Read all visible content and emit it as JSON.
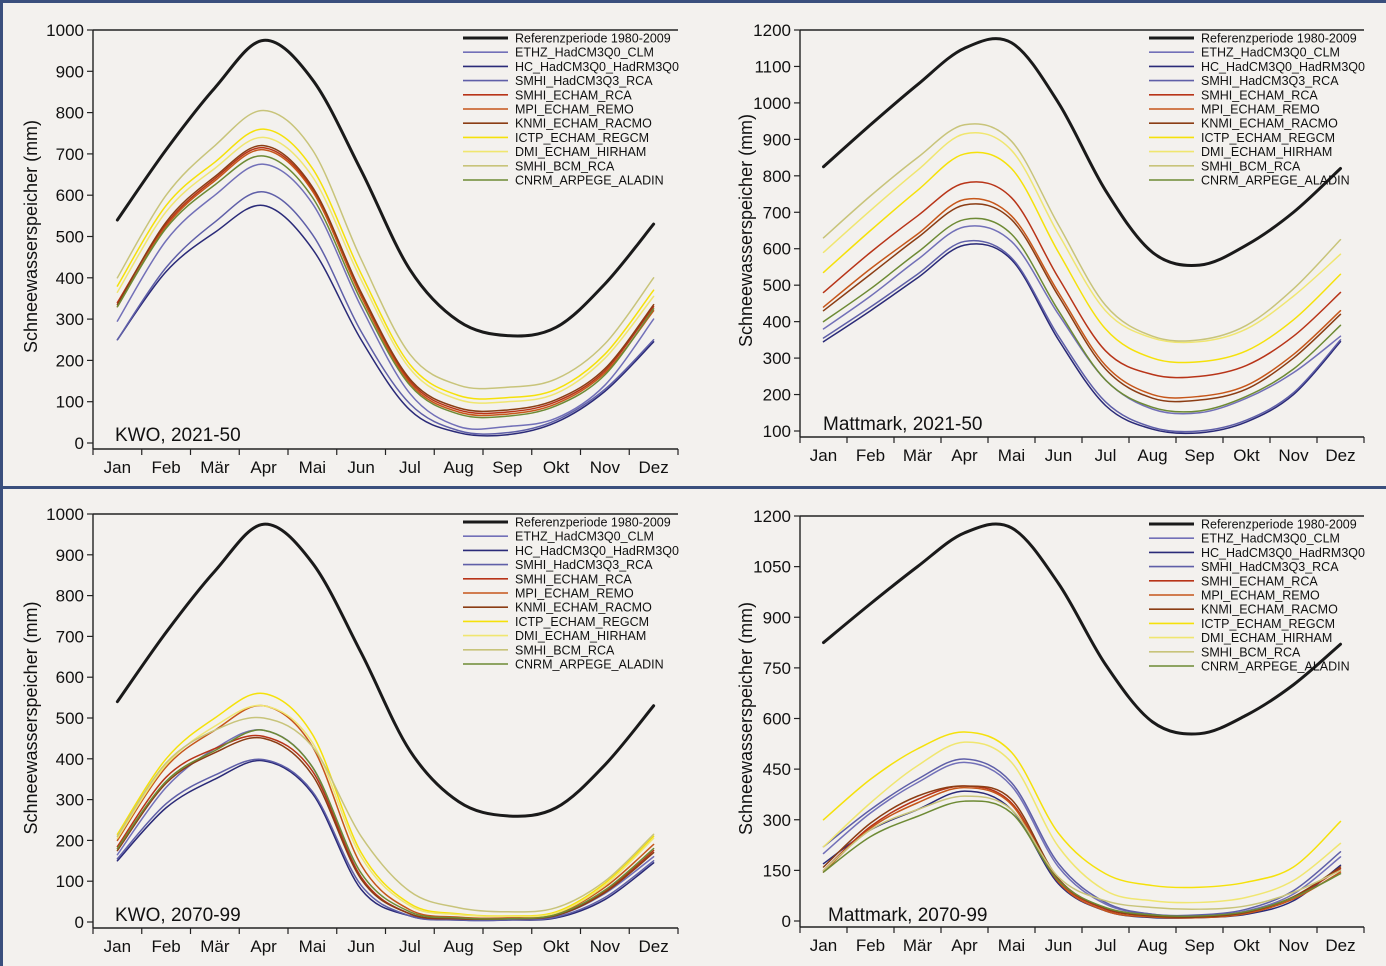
{
  "chart_data": [
    {
      "type": "line",
      "panel_label": "KWO, 2021-50",
      "ylabel": "Schneewasserspeicher (mm)",
      "ylim": [
        0,
        1000
      ],
      "yticks": [
        0,
        100,
        200,
        300,
        400,
        500,
        600,
        700,
        800,
        900,
        1000
      ],
      "categories": [
        "Jan",
        "Feb",
        "Mär",
        "Apr",
        "Mai",
        "Jun",
        "Jul",
        "Aug",
        "Sep",
        "Okt",
        "Nov",
        "Dez"
      ],
      "legend_position": "top-right",
      "series": [
        {
          "name": "Referenzperiode 1980-2009",
          "color": "#1a1a1a",
          "bold": true,
          "values": [
            540,
            710,
            860,
            975,
            880,
            660,
            420,
            295,
            260,
            280,
            385,
            530
          ]
        },
        {
          "name": "ETHZ_HadCM3Q0_CLM",
          "color": "#7270b8",
          "values": [
            295,
            490,
            600,
            675,
            580,
            330,
            120,
            40,
            40,
            60,
            140,
            300
          ]
        },
        {
          "name": "HC_HadCM3Q0_HadRM3Q0",
          "color": "#2a2a78",
          "values": [
            250,
            415,
            510,
            575,
            470,
            250,
            80,
            25,
            20,
            50,
            125,
            245
          ]
        },
        {
          "name": "SMHI_HadCM3Q3_RCA",
          "color": "#5f5fa8",
          "values": [
            250,
            425,
            535,
            608,
            505,
            270,
            95,
            30,
            25,
            55,
            130,
            250
          ]
        },
        {
          "name": "SMHI_ECHAM_RCA",
          "color": "#b83418",
          "values": [
            340,
            530,
            640,
            715,
            615,
            360,
            150,
            80,
            75,
            100,
            175,
            330
          ]
        },
        {
          "name": "MPI_ECHAM_REMO",
          "color": "#c6561a",
          "values": [
            330,
            525,
            635,
            710,
            610,
            355,
            145,
            75,
            70,
            95,
            170,
            320
          ]
        },
        {
          "name": "KNMI_ECHAM_RACMO",
          "color": "#8b3d14",
          "values": [
            335,
            535,
            645,
            720,
            620,
            365,
            155,
            85,
            80,
            105,
            180,
            335
          ]
        },
        {
          "name": "ICTP_ECHAM_REGCM",
          "color": "#f5e10a",
          "values": [
            380,
            575,
            680,
            760,
            665,
            410,
            190,
            115,
            110,
            130,
            215,
            370
          ]
        },
        {
          "name": "DMI_ECHAM_HIRHAM",
          "color": "#f0e670",
          "values": [
            365,
            560,
            665,
            740,
            645,
            395,
            180,
            105,
            100,
            120,
            205,
            355
          ]
        },
        {
          "name": "SMHI_BCM_RCA",
          "color": "#c8c47a",
          "values": [
            400,
            600,
            720,
            805,
            710,
            445,
            215,
            140,
            135,
            155,
            240,
            400
          ]
        },
        {
          "name": "CNRM_ARPEGE_ALADIN",
          "color": "#6d8a34",
          "values": [
            330,
            520,
            625,
            695,
            595,
            345,
            140,
            70,
            65,
            90,
            165,
            325
          ]
        }
      ]
    },
    {
      "type": "line",
      "panel_label": "Mattmark, 2021-50",
      "ylabel": "Schneewasserspeicher (mm)",
      "ylim": [
        100,
        1200
      ],
      "yticks": [
        100,
        200,
        300,
        400,
        500,
        600,
        700,
        800,
        900,
        1000,
        1100,
        1200
      ],
      "categories": [
        "Jan",
        "Feb",
        "Mär",
        "Apr",
        "Mai",
        "Jun",
        "Jul",
        "Aug",
        "Sep",
        "Okt",
        "Nov",
        "Dez"
      ],
      "legend_position": "top-right",
      "series": [
        {
          "name": "Referenzperiode 1980-2009",
          "color": "#1a1a1a",
          "bold": true,
          "values": [
            825,
            940,
            1050,
            1150,
            1165,
            1000,
            760,
            590,
            555,
            610,
            700,
            820
          ]
        },
        {
          "name": "ETHZ_HadCM3Q0_CLM",
          "color": "#7270b8",
          "values": [
            380,
            470,
            570,
            660,
            620,
            420,
            240,
            160,
            150,
            190,
            260,
            360
          ]
        },
        {
          "name": "HC_HadCM3Q0_HadRM3Q0",
          "color": "#2a2a78",
          "values": [
            345,
            430,
            520,
            610,
            570,
            350,
            170,
            105,
            95,
            125,
            200,
            345
          ]
        },
        {
          "name": "SMHI_HadCM3Q3_RCA",
          "color": "#5f5fa8",
          "values": [
            355,
            440,
            530,
            620,
            575,
            360,
            180,
            110,
            100,
            130,
            205,
            350
          ]
        },
        {
          "name": "SMHI_ECHAM_RCA",
          "color": "#b83418",
          "values": [
            480,
            590,
            690,
            780,
            740,
            520,
            320,
            255,
            250,
            280,
            360,
            480
          ]
        },
        {
          "name": "MPI_ECHAM_REMO",
          "color": "#c6561a",
          "values": [
            440,
            545,
            640,
            735,
            690,
            480,
            280,
            200,
            195,
            225,
            310,
            430
          ]
        },
        {
          "name": "KNMI_ECHAM_RACMO",
          "color": "#8b3d14",
          "values": [
            430,
            530,
            630,
            720,
            680,
            470,
            270,
            190,
            185,
            215,
            300,
            420
          ]
        },
        {
          "name": "ICTP_ECHAM_REGCM",
          "color": "#f5e10a",
          "values": [
            535,
            650,
            760,
            860,
            820,
            590,
            380,
            300,
            290,
            320,
            405,
            530
          ]
        },
        {
          "name": "DMI_ECHAM_HIRHAM",
          "color": "#f0e670",
          "values": [
            590,
            705,
            815,
            915,
            870,
            640,
            430,
            355,
            345,
            380,
            470,
            585
          ]
        },
        {
          "name": "SMHI_BCM_RCA",
          "color": "#c8c47a",
          "values": [
            630,
            745,
            850,
            940,
            895,
            665,
            445,
            360,
            350,
            390,
            490,
            625
          ]
        },
        {
          "name": "CNRM_ARPEGE_ALADIN",
          "color": "#6d8a34",
          "values": [
            400,
            490,
            590,
            680,
            640,
            430,
            240,
            165,
            155,
            195,
            270,
            390
          ]
        }
      ]
    },
    {
      "type": "line",
      "panel_label": "KWO, 2070-99",
      "ylabel": "Schneewasserspeicher (mm)",
      "ylim": [
        0,
        1000
      ],
      "yticks": [
        0,
        100,
        200,
        300,
        400,
        500,
        600,
        700,
        800,
        900,
        1000
      ],
      "categories": [
        "Jan",
        "Feb",
        "Mär",
        "Apr",
        "Mai",
        "Jun",
        "Jul",
        "Aug",
        "Sep",
        "Okt",
        "Nov",
        "Dez"
      ],
      "legend_position": "top-right",
      "series": [
        {
          "name": "Referenzperiode 1980-2009",
          "color": "#1a1a1a",
          "bold": true,
          "values": [
            540,
            710,
            860,
            975,
            880,
            660,
            420,
            295,
            260,
            280,
            385,
            530
          ]
        },
        {
          "name": "ETHZ_HadCM3Q0_CLM",
          "color": "#7270b8",
          "values": [
            165,
            330,
            425,
            470,
            380,
            110,
            20,
            5,
            5,
            15,
            70,
            160
          ]
        },
        {
          "name": "HC_HadCM3Q0_HadRM3Q0",
          "color": "#2a2a78",
          "values": [
            150,
            280,
            350,
            395,
            315,
            80,
            15,
            5,
            5,
            10,
            55,
            145
          ]
        },
        {
          "name": "SMHI_HadCM3Q3_RCA",
          "color": "#5f5fa8",
          "values": [
            155,
            290,
            360,
            398,
            320,
            90,
            15,
            5,
            5,
            12,
            60,
            150
          ]
        },
        {
          "name": "SMHI_ECHAM_RCA",
          "color": "#b83418",
          "values": [
            185,
            355,
            425,
            455,
            370,
            110,
            20,
            8,
            8,
            18,
            75,
            175
          ]
        },
        {
          "name": "MPI_ECHAM_REMO",
          "color": "#c6561a",
          "values": [
            200,
            380,
            470,
            530,
            430,
            140,
            30,
            12,
            10,
            20,
            85,
            190
          ]
        },
        {
          "name": "KNMI_ECHAM_RACMO",
          "color": "#8b3d14",
          "values": [
            175,
            340,
            415,
            450,
            360,
            105,
            20,
            8,
            8,
            16,
            72,
            170
          ]
        },
        {
          "name": "ICTP_ECHAM_REGCM",
          "color": "#f5e10a",
          "values": [
            215,
            400,
            500,
            560,
            460,
            170,
            45,
            20,
            15,
            25,
            95,
            210
          ]
        },
        {
          "name": "DMI_ECHAM_HIRHAM",
          "color": "#f0e670",
          "values": [
            205,
            385,
            480,
            530,
            440,
            160,
            40,
            18,
            14,
            22,
            90,
            205
          ]
        },
        {
          "name": "SMHI_BCM_RCA",
          "color": "#c8c47a",
          "values": [
            210,
            390,
            470,
            500,
            430,
            210,
            75,
            35,
            25,
            35,
            100,
            215
          ]
        },
        {
          "name": "CNRM_ARPEGE_ALADIN",
          "color": "#6d8a34",
          "values": [
            180,
            345,
            420,
            470,
            380,
            120,
            25,
            10,
            8,
            18,
            78,
            180
          ]
        }
      ]
    },
    {
      "type": "line",
      "panel_label": "Mattmark, 2070-99",
      "ylabel": "Schneewasserspeicher (mm)",
      "ylim": [
        0,
        1200
      ],
      "yticks": [
        0,
        150,
        300,
        450,
        600,
        750,
        900,
        1050,
        1200
      ],
      "categories": [
        "Jan",
        "Feb",
        "Mär",
        "Apr",
        "Mai",
        "Jun",
        "Jul",
        "Aug",
        "Sep",
        "Okt",
        "Nov",
        "Dez"
      ],
      "legend_position": "top-right",
      "series": [
        {
          "name": "Referenzperiode 1980-2009",
          "color": "#1a1a1a",
          "bold": true,
          "values": [
            825,
            940,
            1050,
            1150,
            1165,
            1000,
            760,
            590,
            555,
            610,
            700,
            820
          ]
        },
        {
          "name": "ETHZ_HadCM3Q0_CLM",
          "color": "#7270b8",
          "values": [
            200,
            320,
            410,
            470,
            400,
            160,
            50,
            20,
            15,
            30,
            80,
            190
          ]
        },
        {
          "name": "HC_HadCM3Q0_HadRM3Q0",
          "color": "#2a2a78",
          "values": [
            170,
            270,
            330,
            385,
            330,
            110,
            30,
            10,
            10,
            20,
            60,
            165
          ]
        },
        {
          "name": "SMHI_HadCM3Q3_RCA",
          "color": "#5f5fa8",
          "values": [
            220,
            330,
            420,
            480,
            410,
            170,
            55,
            20,
            18,
            35,
            90,
            205
          ]
        },
        {
          "name": "SMHI_ECHAM_RCA",
          "color": "#b83418",
          "values": [
            150,
            280,
            360,
            400,
            350,
            120,
            35,
            15,
            12,
            25,
            70,
            155
          ]
        },
        {
          "name": "MPI_ECHAM_REMO",
          "color": "#c6561a",
          "values": [
            145,
            275,
            350,
            395,
            345,
            115,
            30,
            12,
            10,
            22,
            65,
            145
          ]
        },
        {
          "name": "KNMI_ECHAM_RACMO",
          "color": "#8b3d14",
          "values": [
            160,
            290,
            370,
            400,
            360,
            125,
            38,
            15,
            12,
            26,
            72,
            160
          ]
        },
        {
          "name": "ICTP_ECHAM_REGCM",
          "color": "#f5e10a",
          "values": [
            300,
            420,
            510,
            560,
            500,
            260,
            140,
            105,
            100,
            115,
            160,
            295
          ]
        },
        {
          "name": "DMI_ECHAM_HIRHAM",
          "color": "#f0e670",
          "values": [
            220,
            350,
            460,
            530,
            470,
            220,
            90,
            60,
            55,
            70,
            120,
            230
          ]
        },
        {
          "name": "SMHI_BCM_RCA",
          "color": "#c8c47a",
          "values": [
            150,
            270,
            330,
            370,
            330,
            130,
            60,
            40,
            35,
            45,
            85,
            150
          ]
        },
        {
          "name": "CNRM_ARPEGE_ALADIN",
          "color": "#6d8a34",
          "values": [
            145,
            250,
            310,
            355,
            320,
            120,
            40,
            18,
            15,
            28,
            70,
            140
          ]
        }
      ]
    }
  ]
}
